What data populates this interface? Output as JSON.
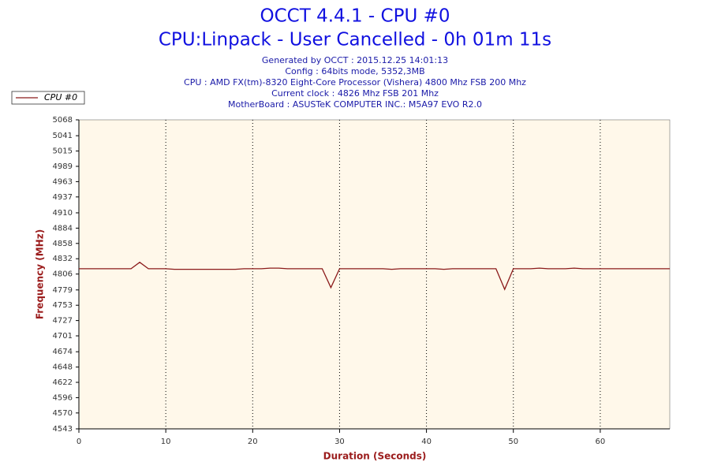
{
  "chart_data": {
    "type": "line",
    "title": "OCCT 4.4.1 - CPU #0",
    "subtitle": "CPU:Linpack - User Cancelled - 0h 01m 11s",
    "info": [
      "Generated by OCCT : 2015.12.25 14:01:13",
      "Config : 64bits mode, 5352,3MB",
      "CPU : AMD FX(tm)-8320 Eight-Core Processor (Vishera) 4800 Mhz FSB 200 Mhz",
      "Current clock : 4826 Mhz FSB 201 Mhz",
      "MotherBoard : ASUSTeK COMPUTER INC.: M5A97 EVO R2.0"
    ],
    "x_label": "Duration (Seconds)",
    "y_label": "Frequency (MHz)",
    "x": [
      0,
      1,
      2,
      3,
      4,
      5,
      6,
      7,
      8,
      9,
      10,
      11,
      12,
      13,
      14,
      15,
      16,
      17,
      18,
      19,
      20,
      21,
      22,
      23,
      24,
      25,
      26,
      27,
      28,
      29,
      30,
      31,
      32,
      33,
      34,
      35,
      36,
      37,
      38,
      39,
      40,
      41,
      42,
      43,
      44,
      45,
      46,
      47,
      48,
      49,
      50,
      51,
      52,
      53,
      54,
      55,
      56,
      57,
      58,
      59,
      60,
      61,
      62,
      63,
      64,
      65,
      66,
      67,
      68
    ],
    "series": [
      {
        "name": "CPU #0",
        "color": "#8b1a1a",
        "values": [
          4815,
          4815,
          4815,
          4815,
          4815,
          4815,
          4815,
          4826,
          4815,
          4815,
          4815,
          4814,
          4814,
          4814,
          4814,
          4814,
          4814,
          4814,
          4814,
          4815,
          4815,
          4815,
          4816,
          4816,
          4815,
          4815,
          4815,
          4815,
          4815,
          4783,
          4815,
          4815,
          4815,
          4815,
          4815,
          4815,
          4814,
          4815,
          4815,
          4815,
          4815,
          4815,
          4814,
          4815,
          4815,
          4815,
          4815,
          4815,
          4815,
          4780,
          4815,
          4815,
          4815,
          4816,
          4815,
          4815,
          4815,
          4816,
          4815,
          4815,
          4815,
          4815,
          4815,
          4815,
          4815,
          4815,
          4815,
          4815,
          4815
        ]
      }
    ],
    "xlim": [
      0,
      68
    ],
    "xticks": [
      0,
      10,
      20,
      30,
      40,
      50,
      60
    ],
    "ylim": [
      4543,
      5068
    ],
    "yticks": [
      4543,
      4570,
      4596,
      4622,
      4648,
      4674,
      4701,
      4727,
      4753,
      4779,
      4806,
      4832,
      4858,
      4884,
      4910,
      4937,
      4963,
      4989,
      5015,
      5041,
      5068
    ],
    "grid": "x",
    "legend": "top-left",
    "plot_background": "#fff8ea"
  }
}
